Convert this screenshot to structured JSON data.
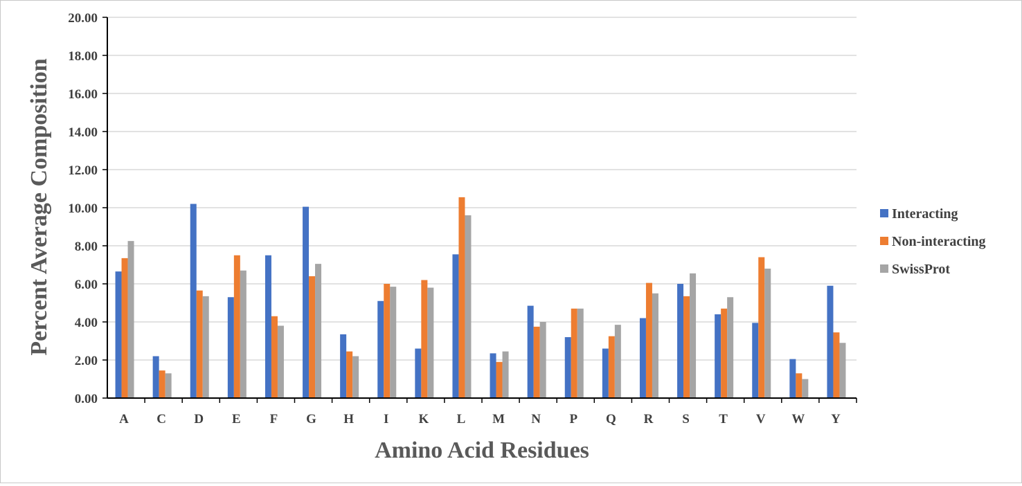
{
  "chart_data": {
    "type": "bar",
    "title": "",
    "xlabel": "Amino Acid Residues",
    "ylabel": "Percent Average Composition",
    "ylim": [
      0,
      20
    ],
    "yticks": [
      "0.00",
      "2.00",
      "4.00",
      "6.00",
      "8.00",
      "10.00",
      "12.00",
      "14.00",
      "16.00",
      "18.00",
      "20.00"
    ],
    "grid": true,
    "legend_position": "right",
    "categories": [
      "A",
      "C",
      "D",
      "E",
      "F",
      "G",
      "H",
      "I",
      "K",
      "L",
      "M",
      "N",
      "P",
      "Q",
      "R",
      "S",
      "T",
      "V",
      "W",
      "Y"
    ],
    "series": [
      {
        "name": "Interacting",
        "color": "#4472C4",
        "values": [
          6.65,
          2.2,
          10.2,
          5.3,
          7.5,
          10.05,
          3.35,
          5.1,
          2.6,
          7.55,
          2.35,
          4.85,
          3.2,
          2.6,
          4.2,
          6.0,
          4.4,
          3.95,
          2.05,
          5.9
        ]
      },
      {
        "name": "Non-interacting",
        "color": "#ED7D31",
        "values": [
          7.35,
          1.45,
          5.65,
          7.5,
          4.3,
          6.4,
          2.45,
          6.0,
          6.2,
          10.55,
          1.9,
          3.75,
          4.7,
          3.25,
          6.05,
          5.35,
          4.7,
          7.4,
          1.3,
          3.45
        ]
      },
      {
        "name": "SwissProt",
        "color": "#A5A5A5",
        "values": [
          8.25,
          1.3,
          5.35,
          6.7,
          3.8,
          7.05,
          2.2,
          5.85,
          5.8,
          9.6,
          2.45,
          4.0,
          4.7,
          3.85,
          5.5,
          6.55,
          5.3,
          6.8,
          1.0,
          2.9
        ]
      }
    ]
  }
}
